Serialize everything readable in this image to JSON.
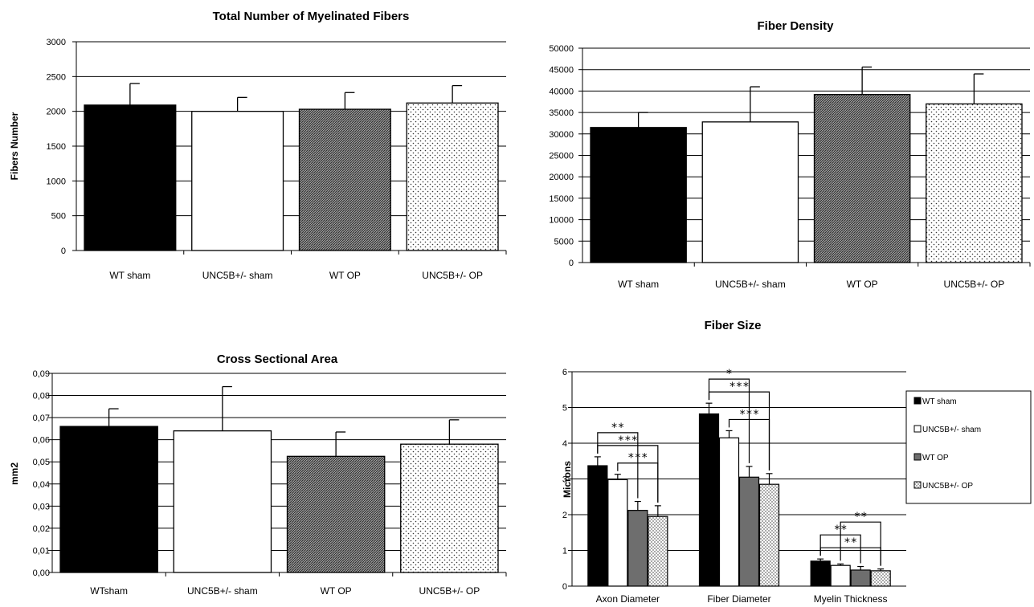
{
  "chart_data": [
    {
      "type": "bar",
      "title": "Total Number of Myelinated Fibers",
      "ylabel": "Fibers Number",
      "xlabel": "",
      "categories": [
        "WT sham",
        "UNC5B+/- sham",
        "WT OP",
        "UNC5B+/- OP"
      ],
      "yticks": [
        "0",
        "500",
        "1000",
        "1500",
        "2000",
        "2500",
        "3000"
      ],
      "ylim": [
        0,
        3000
      ],
      "values": [
        2090,
        2000,
        2030,
        2120
      ],
      "errors": [
        310,
        200,
        240,
        250
      ],
      "grid": true,
      "fills": [
        "black",
        "white",
        "hatch",
        "dots"
      ]
    },
    {
      "type": "bar",
      "title": "Fiber Density",
      "ylabel": "",
      "xlabel": "",
      "categories": [
        "WT sham",
        "UNC5B+/- sham",
        "WT OP",
        "UNC5B+/- OP"
      ],
      "yticks": [
        "0",
        "5000",
        "10000",
        "15000",
        "20000",
        "25000",
        "30000",
        "35000",
        "40000",
        "45000",
        "50000"
      ],
      "ylim": [
        0,
        50000
      ],
      "values": [
        31500,
        32800,
        39200,
        37000
      ],
      "errors": [
        3500,
        8200,
        6400,
        7000
      ],
      "grid": true,
      "fills": [
        "black",
        "white",
        "hatch",
        "dots"
      ]
    },
    {
      "type": "bar",
      "title": "Cross Sectional Area",
      "ylabel": "mm2",
      "xlabel": "",
      "categories": [
        "WTsham",
        "UNC5B+/- sham",
        "WT OP",
        "UNC5B+/- OP"
      ],
      "yticks": [
        "0,00",
        "0,01",
        "0,02",
        "0,03",
        "0,04",
        "0,05",
        "0,06",
        "0,07",
        "0,08",
        "0,09"
      ],
      "ylim": [
        0,
        0.09
      ],
      "values": [
        0.066,
        0.064,
        0.0525,
        0.058
      ],
      "errors": [
        0.008,
        0.02,
        0.011,
        0.011
      ],
      "grid": true,
      "fills": [
        "black",
        "white",
        "hatch",
        "dots"
      ]
    },
    {
      "type": "bar",
      "title": "Fiber Size",
      "ylabel": "Microns",
      "xlabel": "",
      "categories": [
        "Axon Diameter",
        "Fiber Diameter",
        "Myelin Thickness"
      ],
      "yticks": [
        "0",
        "1",
        "2",
        "3",
        "4",
        "5",
        "6"
      ],
      "ylim": [
        0,
        6
      ],
      "grid": true,
      "legend_position": "right",
      "series": [
        {
          "name": "WT sham",
          "values": [
            3.37,
            4.82,
            0.7
          ],
          "errors": [
            0.25,
            0.3,
            0.06
          ],
          "fill": "black"
        },
        {
          "name": "UNC5B+/- sham",
          "values": [
            2.98,
            4.15,
            0.58
          ],
          "errors": [
            0.15,
            0.2,
            0.04
          ],
          "fill": "white"
        },
        {
          "name": "WT OP",
          "values": [
            2.12,
            3.05,
            0.45
          ],
          "errors": [
            0.25,
            0.3,
            0.1
          ],
          "fill": "gray"
        },
        {
          "name": "UNC5B+/- OP",
          "values": [
            1.95,
            2.85,
            0.43
          ],
          "errors": [
            0.3,
            0.3,
            0.05
          ],
          "fill": "dots"
        }
      ],
      "significance": [
        {
          "category": 0,
          "from": 0,
          "to": 3,
          "label": "***"
        },
        {
          "category": 0,
          "from": 0,
          "to": 2,
          "label": "**"
        },
        {
          "category": 0,
          "from": 1,
          "to": 3,
          "label": "***"
        },
        {
          "category": 1,
          "from": 0,
          "to": 3,
          "label": "***"
        },
        {
          "category": 1,
          "from": 0,
          "to": 2,
          "label": "*"
        },
        {
          "category": 1,
          "from": 1,
          "to": 3,
          "label": "***"
        },
        {
          "category": 2,
          "from": 0,
          "to": 3,
          "label": "**"
        },
        {
          "category": 2,
          "from": 0,
          "to": 2,
          "label": "**"
        },
        {
          "category": 2,
          "from": 1,
          "to": 3,
          "label": "**"
        }
      ]
    }
  ]
}
